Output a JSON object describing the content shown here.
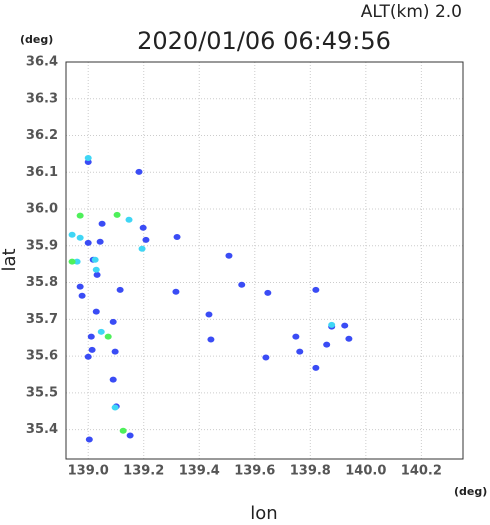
{
  "chart_data": {
    "type": "scatter",
    "title": "2020/01/06 06:49:56",
    "annotation": "ALT(km)  2.0",
    "xlabel": "lon",
    "ylabel": "lat",
    "xunit": "(deg)",
    "yunit": "(deg)",
    "xlim": [
      138.92,
      140.35
    ],
    "ylim": [
      35.32,
      36.4
    ],
    "xticks": [
      {
        "value": 139,
        "label": "139.0"
      },
      139.2,
      139.4,
      139.6,
      139.8,
      {
        "value": 140,
        "label": "140.0"
      },
      140.2
    ],
    "yticks": [
      35.4,
      35.5,
      35.6,
      35.7,
      35.8,
      35.9,
      {
        "value": 36,
        "label": "36.0"
      },
      36.1,
      36.2,
      36.3,
      36.4
    ],
    "grid": true,
    "series": [
      {
        "color": "#3a4cf5",
        "x": [
          139.0,
          139.0,
          139.043,
          139.018,
          139.032,
          138.971,
          138.978,
          139.011,
          139.014,
          139.0,
          139.029,
          139.09,
          139.097,
          139.09,
          139.101,
          139.004,
          139.151,
          139.183,
          139.198,
          139.208,
          139.32,
          139.316,
          139.442,
          139.435,
          139.507,
          139.553,
          139.647,
          139.64,
          139.748,
          139.762,
          139.82,
          139.82,
          139.859,
          139.877,
          139.924,
          139.939,
          139.115,
          139.05
        ],
        "values": [
          36.128,
          35.908,
          35.911,
          35.862,
          35.821,
          35.789,
          35.764,
          35.653,
          35.617,
          35.598,
          35.721,
          35.693,
          35.612,
          35.536,
          35.463,
          35.373,
          35.384,
          36.101,
          35.949,
          35.916,
          35.924,
          35.775,
          35.645,
          35.713,
          35.873,
          35.794,
          35.772,
          35.596,
          35.653,
          35.612,
          35.78,
          35.568,
          35.631,
          35.68,
          35.683,
          35.647,
          35.78,
          35.96
        ]
      },
      {
        "color": "#3fd6f5",
        "x": [
          139.0,
          138.971,
          138.942,
          138.96,
          139.029,
          139.147,
          139.194,
          139.047,
          139.097,
          139.025,
          139.877
        ],
        "values": [
          36.139,
          35.922,
          35.93,
          35.857,
          35.835,
          35.971,
          35.892,
          35.666,
          35.46,
          35.862,
          35.685
        ]
      },
      {
        "color": "#4ef05a",
        "x": [
          138.971,
          139.104,
          139.072,
          139.126,
          138.942
        ],
        "values": [
          35.982,
          35.984,
          35.653,
          35.397,
          35.857
        ]
      }
    ]
  }
}
